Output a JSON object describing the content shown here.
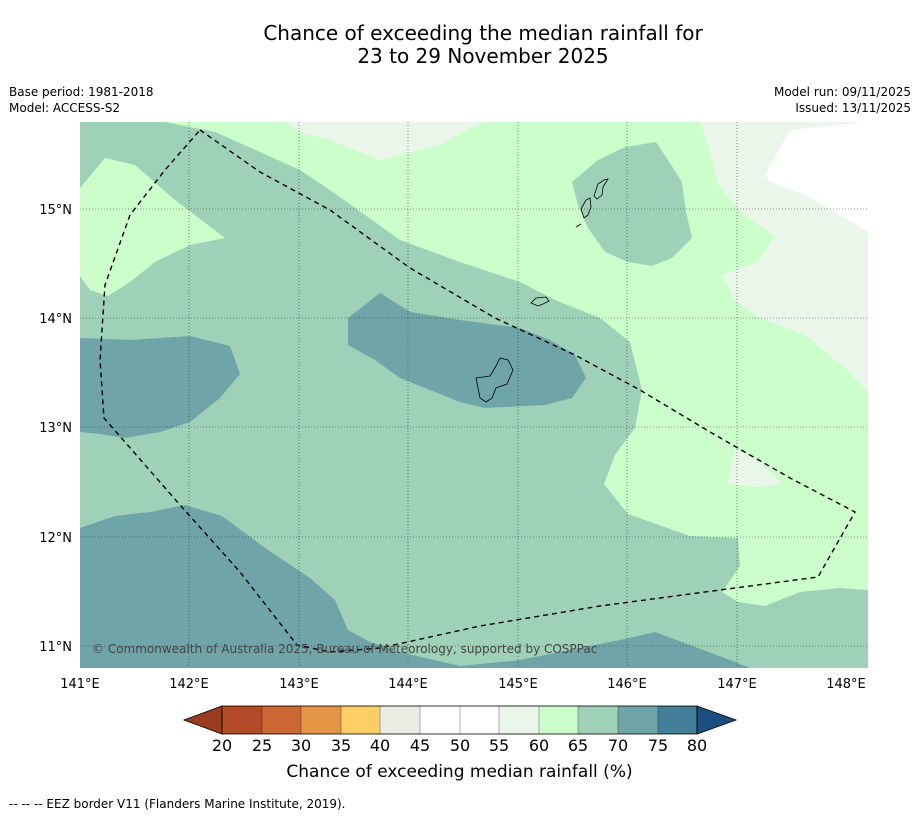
{
  "title": {
    "line1": "Chance of exceeding the median rainfall for",
    "line2": "23 to 29 November 2025"
  },
  "meta": {
    "base_period": "Base period: 1981-2018",
    "model": "Model: ACCESS-S2",
    "model_run": "Model run: 09/11/2025",
    "issued": "Issued: 13/11/2025"
  },
  "axes": {
    "lon_labels": [
      "141°E",
      "142°E",
      "143°E",
      "144°E",
      "145°E",
      "146°E",
      "147°E",
      "148°E"
    ],
    "lat_labels": [
      "15°N",
      "14°N",
      "13°N",
      "12°N",
      "11°N"
    ]
  },
  "copyright": "© Commonwealth of Australia 2025, Bureau of Meteorology, supported by COSPPac",
  "colorbar": {
    "title": "Chance of exceeding median rainfall (%)",
    "ticks": [
      "20",
      "25",
      "30",
      "35",
      "40",
      "45",
      "50",
      "55",
      "60",
      "65",
      "70",
      "75",
      "80"
    ],
    "colors": {
      "below20": "#9a3d1f",
      "c20_25": "#b34a27",
      "c25_30": "#cc6633",
      "c30_35": "#e39545",
      "c35_40": "#fdcd66",
      "c40_45": "#ebebe6",
      "c45_50": "#ffffff",
      "c50_55": "#ffffff",
      "c55_60": "#eaf6ea",
      "c60_65": "#ccfecc",
      "c65_70": "#9fd1b9",
      "c70_75": "#6fa5a8",
      "c75_80": "#447f99",
      "above80": "#1a4d80"
    }
  },
  "footnote": "--  --  -- EEZ border V11 (Flanders Marine Institute, 2019)."
}
